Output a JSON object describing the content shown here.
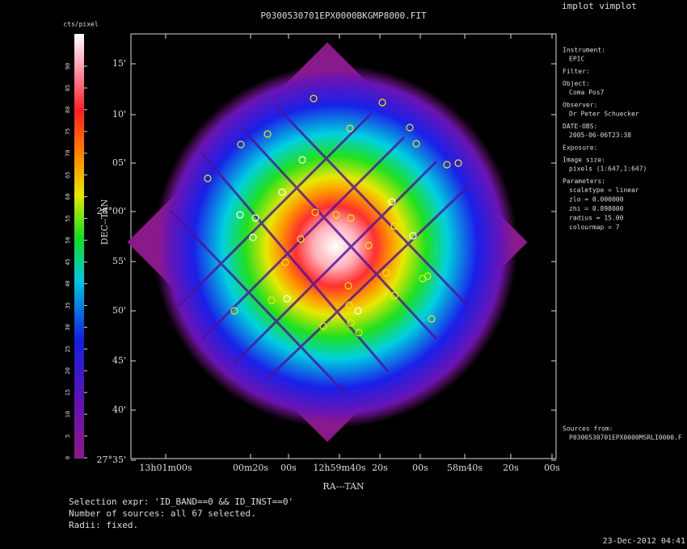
{
  "window": {
    "title": "implot vimplot"
  },
  "plot": {
    "title": "P0300530701EPX0000BKGMP8000.FIT",
    "colorbar": {
      "label": "cts/pixel",
      "ticks": [
        "0",
        "5",
        "10",
        "15",
        "20",
        "25",
        "30",
        "35",
        "40",
        "45",
        "50",
        "55",
        "60",
        "65",
        "70",
        "75",
        "80",
        "85",
        "90"
      ]
    },
    "y_axis": {
      "title": "DEC--TAN",
      "ticks": [
        "15'",
        "10'",
        "05'",
        "28°00'",
        "55'",
        "50'",
        "45'",
        "40'",
        "27°35'"
      ]
    },
    "x_axis": {
      "title": "RA---TAN",
      "ticks": [
        "13h01m00s",
        "00m20s",
        "00s",
        "12h59m40s",
        "20s",
        "00s",
        "58m40s",
        "20s",
        "00s"
      ]
    }
  },
  "info": [
    {
      "label": "Instrument:",
      "lines": [
        "EPIC"
      ]
    },
    {
      "label": "Filter:",
      "lines": []
    },
    {
      "label": "Object:",
      "lines": [
        "Coma Pos7"
      ]
    },
    {
      "label": "Observer:",
      "lines": [
        "Dr Peter Schuecker"
      ]
    },
    {
      "label": "DATE-OBS:",
      "lines": [
        "2005-06-06T23:38"
      ]
    },
    {
      "label": "Exposure:",
      "lines": []
    },
    {
      "label": "Image size:",
      "lines": [
        "pixels (1:647,1:647)"
      ]
    },
    {
      "label": "Parameters:",
      "lines": [
        "scaletype = linear",
        "zlo = 0.000000",
        "zhi = 0.898000",
        "radius = 15.00",
        "colourmap = 7"
      ]
    }
  ],
  "sources": {
    "label": "Sources from:",
    "file": "P0300530701EPX0000MSRLI0000.F"
  },
  "footer": {
    "lines": [
      "Selection expr: 'ID_BAND==0 && ID_INST==0'",
      "Number of sources: all 67 selected.",
      "Radii: fixed."
    ],
    "timestamp": "23-Dec-2012 04:41"
  }
}
